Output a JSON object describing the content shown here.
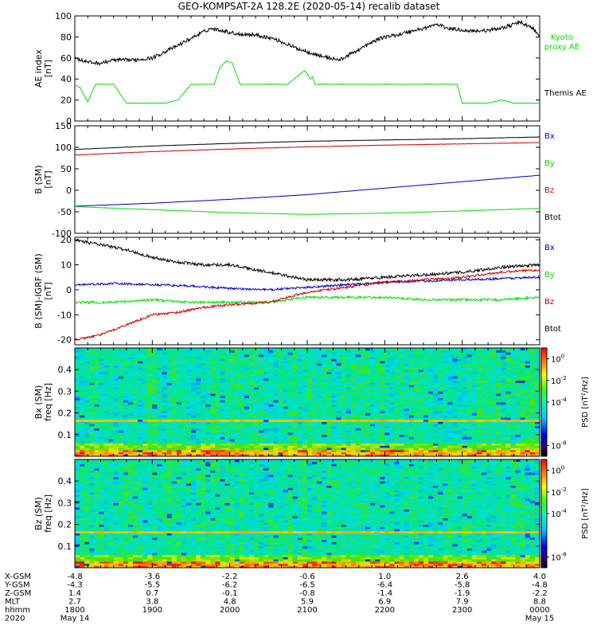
{
  "title": "GEO-KOMPSAT-2A 128.2E (2020-05-14) recalib dataset",
  "chart_data": [
    {
      "type": "line",
      "ylabel_lines": [
        "AE index",
        "[nT]"
      ],
      "ylim": [
        0,
        100
      ],
      "yticks": [
        0,
        20,
        40,
        60,
        80,
        100
      ],
      "xlim": [
        0,
        360
      ],
      "series": [
        {
          "name": "Kyoto proxy AE",
          "name_lines": [
            "Kyoto",
            "proxy AE"
          ],
          "color": "#00dd00",
          "x": [
            0,
            4,
            10,
            16,
            22,
            30,
            40,
            45,
            50,
            60,
            70,
            80,
            90,
            100,
            108,
            112,
            117,
            122,
            128,
            132,
            135,
            145,
            155,
            165,
            170,
            175,
            178,
            180,
            182,
            184,
            186,
            190,
            200,
            225,
            250,
            260,
            285,
            288,
            292,
            296,
            300,
            305,
            320,
            330,
            340,
            360
          ],
          "y": [
            34,
            32,
            18,
            35,
            35,
            35,
            17,
            17,
            17,
            17,
            17,
            20,
            35,
            35,
            35,
            50,
            57,
            55,
            35,
            35,
            35,
            35,
            35,
            35,
            40,
            45,
            48,
            45,
            40,
            42,
            35,
            35,
            35,
            35,
            35,
            35,
            35,
            35,
            35,
            35,
            17,
            17,
            17,
            20,
            17,
            17
          ]
        },
        {
          "name": "Themis AE",
          "name_lines": [
            "Themis AE"
          ],
          "color": "#000000",
          "x": [
            0,
            10,
            20,
            30,
            45,
            60,
            70,
            80,
            95,
            105,
            115,
            125,
            140,
            155,
            170,
            190,
            205,
            220,
            235,
            240,
            250,
            262,
            270,
            280,
            290,
            305,
            320,
            335,
            345,
            355,
            360
          ],
          "y": [
            60,
            56,
            55,
            58,
            58,
            60,
            66,
            72,
            82,
            88,
            86,
            83,
            82,
            78,
            70,
            62,
            58,
            68,
            78,
            80,
            82,
            86,
            88,
            92,
            88,
            86,
            86,
            90,
            94,
            88,
            80
          ]
        }
      ]
    },
    {
      "type": "line",
      "ylabel_lines": [
        "B (SM)",
        "[nT]"
      ],
      "ylim": [
        -100,
        150
      ],
      "yticks": [
        -100,
        -50,
        0,
        50,
        100,
        150
      ],
      "xlim": [
        0,
        360
      ],
      "series": [
        {
          "name": "Bx",
          "color": "#0000cc",
          "x": [
            0,
            60,
            120,
            180,
            240,
            300,
            360
          ],
          "y": [
            -37,
            -30,
            -21,
            -10,
            5,
            20,
            35
          ]
        },
        {
          "name": "By",
          "color": "#00dd00",
          "x": [
            0,
            60,
            120,
            180,
            240,
            300,
            360
          ],
          "y": [
            -38,
            -45,
            -52,
            -56,
            -53,
            -48,
            -42
          ]
        },
        {
          "name": "Bz",
          "color": "#cc0000",
          "x": [
            0,
            60,
            120,
            180,
            240,
            300,
            360
          ],
          "y": [
            82,
            90,
            96,
            101,
            105,
            108,
            111
          ]
        },
        {
          "name": "Btot",
          "color": "#000000",
          "x": [
            0,
            60,
            120,
            180,
            240,
            300,
            360
          ],
          "y": [
            95,
            103,
            109,
            114,
            117,
            120,
            124
          ]
        }
      ]
    },
    {
      "type": "line",
      "ylabel_lines": [
        "B (SM)-IGRF (SM)",
        "[nT]"
      ],
      "ylim": [
        -22,
        21
      ],
      "yticks": [
        -20,
        -10,
        0,
        10,
        20
      ],
      "xlim": [
        0,
        360
      ],
      "series": [
        {
          "name": "Bx",
          "color": "#0000cc",
          "x": [
            0,
            30,
            60,
            90,
            120,
            150,
            180,
            210,
            240,
            270,
            300,
            330,
            360
          ],
          "y": [
            2,
            2.5,
            2,
            1.5,
            0.5,
            0,
            1,
            2,
            3,
            3.5,
            4,
            4.5,
            5
          ]
        },
        {
          "name": "By",
          "color": "#00dd00",
          "x": [
            0,
            30,
            60,
            90,
            120,
            150,
            180,
            210,
            240,
            270,
            300,
            330,
            360
          ],
          "y": [
            -5,
            -5,
            -4,
            -5,
            -5,
            -5,
            -3,
            -3,
            -3,
            -4,
            -4,
            -4,
            -3
          ]
        },
        {
          "name": "Bz",
          "color": "#cc0000",
          "x": [
            0,
            20,
            40,
            60,
            80,
            100,
            120,
            150,
            180,
            210,
            240,
            270,
            300,
            330,
            360
          ],
          "y": [
            -20,
            -18,
            -14,
            -10,
            -9,
            -7,
            -6,
            -5,
            -1,
            1,
            3,
            4,
            5,
            7,
            8
          ]
        },
        {
          "name": "Btot",
          "color": "#000000",
          "x": [
            0,
            20,
            40,
            60,
            80,
            100,
            120,
            150,
            180,
            210,
            240,
            270,
            300,
            330,
            360
          ],
          "y": [
            20,
            18,
            16,
            13,
            11,
            10,
            10,
            7,
            4,
            4,
            5,
            6,
            7,
            9,
            10
          ]
        }
      ]
    },
    {
      "type": "heatmap",
      "ylabel_lines": [
        "Bx (SM)",
        "freq [Hz]"
      ],
      "ylim": [
        0,
        0.5
      ],
      "yticks": [
        0.1,
        0.2,
        0.3,
        0.4
      ],
      "colorbar_label": "PSD [nT²/Hz]",
      "colorbar_ticks": [
        {
          "base": "10",
          "exp": "0",
          "value": 0
        },
        {
          "base": "10",
          "exp": "-2",
          "value": -2
        },
        {
          "base": "10",
          "exp": "-4",
          "value": -4
        },
        {
          "base": "10",
          "exp": "-8",
          "value": -8
        }
      ]
    },
    {
      "type": "heatmap",
      "ylabel_lines": [
        "Bz (SM)",
        "freq [Hz]"
      ],
      "ylim": [
        0,
        0.5
      ],
      "yticks": [
        0.1,
        0.2,
        0.3,
        0.4
      ],
      "colorbar_label": "PSD [nT²/Hz]",
      "colorbar_ticks": [
        {
          "base": "10",
          "exp": "0",
          "value": 0
        },
        {
          "base": "10",
          "exp": "-2",
          "value": -2
        },
        {
          "base": "10",
          "exp": "-4",
          "value": -4
        },
        {
          "base": "10",
          "exp": "-8",
          "value": -8
        }
      ]
    }
  ],
  "x_axis": {
    "rows": [
      {
        "label": "X-GSM",
        "values": [
          "-4.8",
          "-3.6",
          "-2.2",
          "-0.6",
          "1.0",
          "2.6",
          "4.0"
        ]
      },
      {
        "label": "Y-GSM",
        "values": [
          "-4.3",
          "-5.5",
          "-6.2",
          "-6.5",
          "-6.4",
          "-5.8",
          "-4.8"
        ]
      },
      {
        "label": "Z-GSM",
        "values": [
          "1.4",
          "0.7",
          "-0.1",
          "-0.8",
          "-1.4",
          "-1.9",
          "-2.2"
        ]
      },
      {
        "label": "MLT",
        "values": [
          "2.7",
          "3.8",
          "4.8",
          "5.9",
          "6.9",
          "7.9",
          "8.8"
        ]
      },
      {
        "label": "hhmm",
        "values": [
          "1800",
          "1900",
          "2000",
          "2100",
          "2200",
          "2300",
          "0000"
        ]
      }
    ],
    "date_row": {
      "label": "2020",
      "left": "May 14",
      "right": "May 15"
    }
  }
}
